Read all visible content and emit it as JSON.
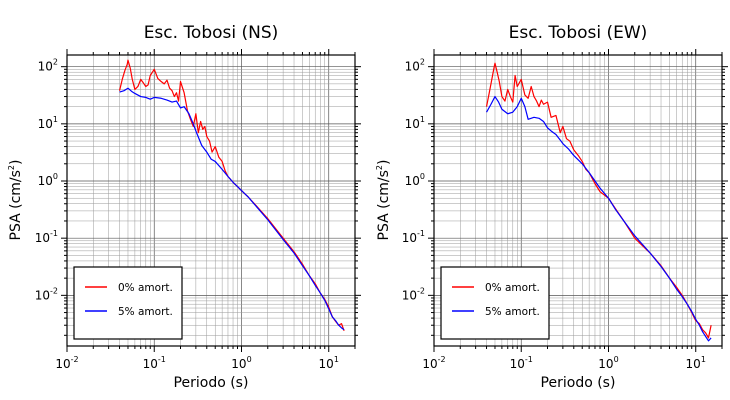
{
  "chart_data": [
    {
      "type": "line",
      "title": "Esc. Tobosi (NS)",
      "xlabel": "Periodo (s)",
      "ylabel": "PSA (cm/s",
      "ylabel_sup": "2",
      "ylabel_tail": ")",
      "xscale": "log",
      "yscale": "log",
      "xlim": [
        0.01,
        20
      ],
      "ylim": [
        0.0013,
        160
      ],
      "xticks": [
        {
          "v": 0.01,
          "base": "10",
          "exp": "-2"
        },
        {
          "v": 0.1,
          "base": "10",
          "exp": "-1"
        },
        {
          "v": 1,
          "base": "10",
          "exp": "0"
        },
        {
          "v": 10,
          "base": "10",
          "exp": "1"
        }
      ],
      "yticks": [
        {
          "v": 0.01,
          "base": "10",
          "exp": "-2"
        },
        {
          "v": 0.1,
          "base": "10",
          "exp": "-1"
        },
        {
          "v": 1,
          "base": "10",
          "exp": "0"
        },
        {
          "v": 10,
          "base": "10",
          "exp": "1"
        },
        {
          "v": 100,
          "base": "10",
          "exp": "2"
        }
      ],
      "grid": true,
      "legend_position": "bottom-left",
      "series": [
        {
          "name": "0% amort.",
          "color": "#ff0000",
          "x": [
            0.04,
            0.043,
            0.046,
            0.049,
            0.05,
            0.053,
            0.056,
            0.06,
            0.065,
            0.07,
            0.075,
            0.08,
            0.085,
            0.09,
            0.1,
            0.11,
            0.12,
            0.13,
            0.14,
            0.15,
            0.16,
            0.17,
            0.18,
            0.19,
            0.2,
            0.22,
            0.24,
            0.26,
            0.28,
            0.3,
            0.32,
            0.34,
            0.36,
            0.38,
            0.4,
            0.43,
            0.46,
            0.5,
            0.55,
            0.6,
            0.65,
            0.7,
            0.8,
            0.9,
            1.0,
            1.2,
            1.5,
            2,
            3,
            4,
            5,
            6,
            7,
            8,
            9,
            10,
            11,
            12,
            13,
            14,
            15
          ],
          "y": [
            38,
            60,
            85,
            110,
            130,
            95,
            60,
            40,
            45,
            60,
            52,
            45,
            48,
            70,
            90,
            62,
            55,
            50,
            58,
            42,
            38,
            30,
            35,
            25,
            55,
            35,
            17,
            12,
            9,
            15,
            7,
            11,
            8,
            9,
            6,
            5,
            3.2,
            4,
            2.6,
            2.2,
            1.5,
            1.2,
            0.95,
            0.8,
            0.68,
            0.52,
            0.36,
            0.22,
            0.1,
            0.058,
            0.035,
            0.022,
            0.016,
            0.011,
            0.0085,
            0.0062,
            0.0042,
            0.0035,
            0.003,
            0.0032,
            0.0024
          ]
        },
        {
          "name": "5% amort.",
          "color": "#0000ff",
          "x": [
            0.04,
            0.045,
            0.05,
            0.055,
            0.06,
            0.07,
            0.08,
            0.09,
            0.1,
            0.12,
            0.14,
            0.16,
            0.18,
            0.2,
            0.22,
            0.25,
            0.28,
            0.3,
            0.35,
            0.4,
            0.45,
            0.5,
            0.6,
            0.7,
            0.8,
            0.9,
            1.0,
            1.2,
            1.5,
            2,
            3,
            4,
            5,
            6,
            7,
            8,
            9,
            10,
            11,
            12,
            13,
            14,
            15
          ],
          "y": [
            36,
            38,
            42,
            37,
            34,
            30,
            29,
            27,
            29,
            28,
            26,
            24,
            25,
            19,
            20,
            15,
            10,
            7.5,
            4.2,
            3.2,
            2.4,
            2.2,
            1.6,
            1.2,
            0.95,
            0.8,
            0.68,
            0.52,
            0.35,
            0.21,
            0.095,
            0.055,
            0.033,
            0.022,
            0.015,
            0.011,
            0.0082,
            0.0058,
            0.0042,
            0.0036,
            0.003,
            0.0027,
            0.0025
          ]
        }
      ]
    },
    {
      "type": "line",
      "title": "Esc. Tobosi (EW)",
      "xlabel": "Periodo (s)",
      "ylabel": "PSA (cm/s",
      "ylabel_sup": "2",
      "ylabel_tail": ")",
      "xscale": "log",
      "yscale": "log",
      "xlim": [
        0.01,
        20
      ],
      "ylim": [
        0.0013,
        160
      ],
      "xticks": [
        {
          "v": 0.01,
          "base": "10",
          "exp": "-2"
        },
        {
          "v": 0.1,
          "base": "10",
          "exp": "-1"
        },
        {
          "v": 1,
          "base": "10",
          "exp": "0"
        },
        {
          "v": 10,
          "base": "10",
          "exp": "1"
        }
      ],
      "yticks": [
        {
          "v": 0.01,
          "base": "10",
          "exp": "-2"
        },
        {
          "v": 0.1,
          "base": "10",
          "exp": "-1"
        },
        {
          "v": 1,
          "base": "10",
          "exp": "0"
        },
        {
          "v": 10,
          "base": "10",
          "exp": "1"
        },
        {
          "v": 100,
          "base": "10",
          "exp": "2"
        }
      ],
      "grid": true,
      "legend_position": "bottom-left",
      "series": [
        {
          "name": "0% amort.",
          "color": "#ff0000",
          "x": [
            0.04,
            0.043,
            0.046,
            0.049,
            0.05,
            0.053,
            0.056,
            0.06,
            0.065,
            0.07,
            0.075,
            0.08,
            0.085,
            0.09,
            0.1,
            0.11,
            0.12,
            0.13,
            0.14,
            0.15,
            0.16,
            0.17,
            0.18,
            0.2,
            0.22,
            0.25,
            0.28,
            0.3,
            0.33,
            0.36,
            0.4,
            0.45,
            0.5,
            0.55,
            0.6,
            0.7,
            0.8,
            1.0,
            1.2,
            1.5,
            2,
            3,
            4,
            5,
            6,
            7,
            8,
            9,
            10,
            11,
            12,
            13,
            14,
            15
          ],
          "y": [
            20,
            35,
            60,
            100,
            115,
            80,
            55,
            30,
            25,
            40,
            30,
            24,
            70,
            45,
            60,
            32,
            28,
            45,
            30,
            25,
            20,
            26,
            22,
            24,
            13,
            14,
            7,
            9,
            5.5,
            5,
            3.5,
            2.8,
            2.2,
            1.6,
            1.4,
            0.9,
            0.65,
            0.5,
            0.33,
            0.2,
            0.1,
            0.055,
            0.033,
            0.02,
            0.014,
            0.01,
            0.007,
            0.005,
            0.0036,
            0.0032,
            0.0025,
            0.0022,
            0.0018,
            0.003
          ]
        },
        {
          "name": "5% amort.",
          "color": "#0000ff",
          "x": [
            0.04,
            0.045,
            0.05,
            0.055,
            0.06,
            0.07,
            0.08,
            0.09,
            0.1,
            0.11,
            0.12,
            0.14,
            0.16,
            0.18,
            0.2,
            0.22,
            0.25,
            0.28,
            0.3,
            0.35,
            0.4,
            0.5,
            0.6,
            0.7,
            0.8,
            1.0,
            1.2,
            1.5,
            2,
            3,
            4,
            5,
            6,
            7,
            8,
            9,
            10,
            11,
            12,
            13,
            14,
            15
          ],
          "y": [
            16,
            22,
            30,
            24,
            18,
            15,
            16,
            20,
            28,
            20,
            12,
            13,
            12.5,
            11,
            8.5,
            7.5,
            6.5,
            5.2,
            4.5,
            3.6,
            2.8,
            2.0,
            1.4,
            1.0,
            0.75,
            0.5,
            0.32,
            0.2,
            0.11,
            0.055,
            0.032,
            0.02,
            0.013,
            0.0095,
            0.007,
            0.0052,
            0.0038,
            0.003,
            0.0023,
            0.0019,
            0.0016,
            0.0018
          ]
        }
      ]
    }
  ]
}
